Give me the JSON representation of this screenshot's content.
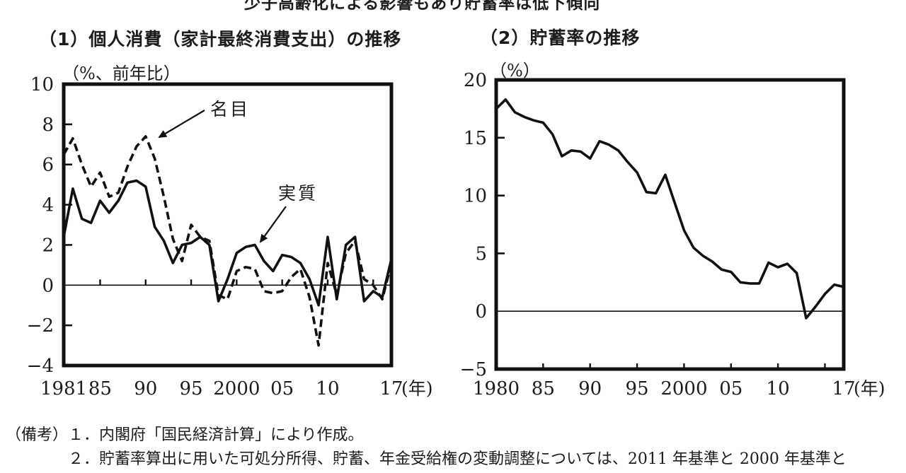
{
  "page": {
    "top_title_clipped": "少子高齢化による影響もあり貯蓄率は低下傾向"
  },
  "chart_data": [
    {
      "type": "line",
      "title": "（1）個人消費（家計最終消費支出）の推移",
      "unit_label": "（%、前年比）",
      "x_start": 1981,
      "x_end": 2017,
      "x_ticks": [
        {
          "label": "1981",
          "year": 1981
        },
        {
          "label": "85",
          "year": 1985
        },
        {
          "label": "90",
          "year": 1990
        },
        {
          "label": "95",
          "year": 1995
        },
        {
          "label": "2000",
          "year": 2000
        },
        {
          "label": "05",
          "year": 2005
        },
        {
          "label": "10",
          "year": 2010
        },
        {
          "label": "17",
          "year": 2017
        }
      ],
      "x_suffix": "(年)",
      "ylim": [
        -4,
        10
      ],
      "y_ticks": [
        {
          "label": "10",
          "value": 10
        },
        {
          "label": "8",
          "value": 8
        },
        {
          "label": "6",
          "value": 6
        },
        {
          "label": "4",
          "value": 4
        },
        {
          "label": "2",
          "value": 2
        },
        {
          "label": "0",
          "value": 0
        },
        {
          "label": "-2",
          "value": -2
        },
        {
          "label": "-4",
          "value": -4
        }
      ],
      "series": [
        {
          "name": "名目",
          "line_style": "dashed",
          "values": [
            6.5,
            7.3,
            6.0,
            4.9,
            5.6,
            4.4,
            4.6,
            5.9,
            6.9,
            7.4,
            6.3,
            4.4,
            2.3,
            1.2,
            3.0,
            2.4,
            2.2,
            -0.5,
            -0.7,
            0.7,
            0.9,
            0.8,
            -0.3,
            -0.4,
            -0.3,
            0.4,
            0.8,
            -0.6,
            -3.0,
            1.1,
            -0.5,
            1.6,
            2.2,
            0.3,
            0.0,
            -0.7,
            1.1
          ]
        },
        {
          "name": "実質",
          "line_style": "solid",
          "values": [
            2.4,
            4.8,
            3.3,
            3.1,
            4.2,
            3.6,
            4.2,
            5.1,
            5.2,
            4.9,
            2.9,
            2.2,
            1.1,
            2.0,
            2.1,
            2.4,
            2.0,
            -0.8,
            0.3,
            1.6,
            1.9,
            2.0,
            1.2,
            0.7,
            1.5,
            1.4,
            1.1,
            0.3,
            -1.0,
            2.4,
            -0.7,
            2.0,
            2.4,
            -0.8,
            -0.3,
            -0.6,
            1.3
          ]
        }
      ],
      "annotations": [
        "名目",
        "実質"
      ]
    },
    {
      "type": "line",
      "title": "（2）貯蓄率の推移",
      "unit_label": "（%）",
      "x_start": 1980,
      "x_end": 2017,
      "x_ticks": [
        {
          "label": "1980",
          "year": 1980
        },
        {
          "label": "85",
          "year": 1985
        },
        {
          "label": "90",
          "year": 1990
        },
        {
          "label": "95",
          "year": 1995
        },
        {
          "label": "2000",
          "year": 2000
        },
        {
          "label": "05",
          "year": 2005
        },
        {
          "label": "10",
          "year": 2010
        },
        {
          "label": "17",
          "year": 2017
        }
      ],
      "x_suffix": "(年)",
      "ylim": [
        -5,
        20
      ],
      "y_ticks": [
        {
          "label": "20",
          "value": 20
        },
        {
          "label": "15",
          "value": 15
        },
        {
          "label": "10",
          "value": 10
        },
        {
          "label": "5",
          "value": 5
        },
        {
          "label": "0",
          "value": 0
        },
        {
          "label": "-5",
          "value": -5
        }
      ],
      "series": [
        {
          "name": "貯蓄率",
          "line_style": "solid",
          "values": [
            17.5,
            18.3,
            17.2,
            16.8,
            16.5,
            16.3,
            15.3,
            13.4,
            13.9,
            13.8,
            13.2,
            14.7,
            14.4,
            13.9,
            12.9,
            12.0,
            10.3,
            10.2,
            11.8,
            9.4,
            7.0,
            5.5,
            4.8,
            4.3,
            3.6,
            3.4,
            2.5,
            2.4,
            2.4,
            4.2,
            3.8,
            4.1,
            3.3,
            -0.6,
            0.4,
            1.5,
            2.3,
            2.1
          ]
        }
      ],
      "annotations": []
    }
  ],
  "notes": {
    "prefix": "（備考）",
    "items": [
      "１．内閣府「国民経済計算」により作成。",
      "２．貯蓄率算出に用いた可処分所得、貯蓄、年金受給権の変動調整については、2011 年基準と 2000 年基準と"
    ]
  },
  "colors": {
    "line": "#111111",
    "text": "#1c1c1c",
    "background": "#ffffff"
  }
}
